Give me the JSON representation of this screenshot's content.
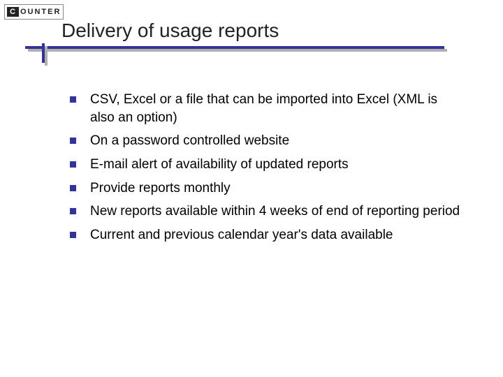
{
  "logo": {
    "box": "C",
    "rest": "OUNTER"
  },
  "title": "Delivery of usage reports",
  "accent_color": "#333399",
  "shadow_color": "#b0b0b0",
  "bullets": [
    "CSV, Excel or a file that can be imported into Excel (XML is also an option)",
    "On a password controlled website",
    "E-mail alert of availability of updated reports",
    "Provide reports monthly",
    "New reports available within 4 weeks of end of reporting period",
    "Current and previous calendar year's data available"
  ]
}
